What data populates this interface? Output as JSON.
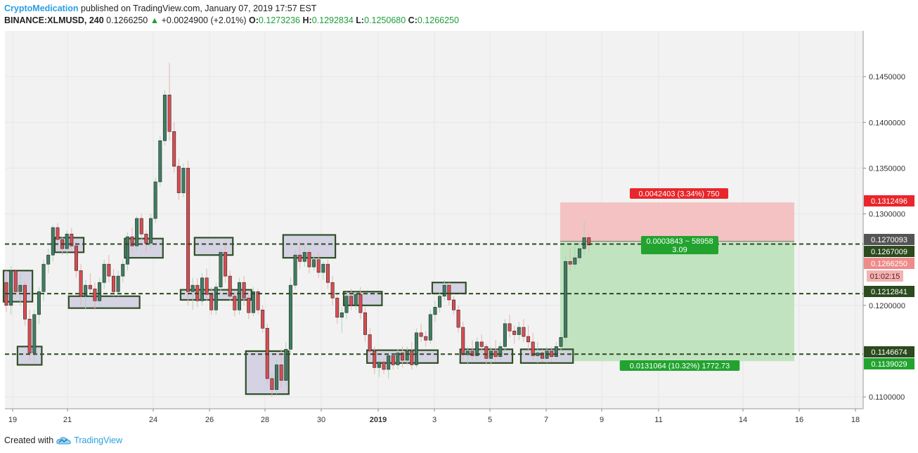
{
  "header": {
    "author": "CryptoMedication",
    "published": " published on TradingView.com, January 07, 2019 17:57 EST",
    "symbol": "BINANCE:XLMUSD, 240",
    "last": "0.1266250",
    "change_arrow": "▲",
    "change": "+0.0024900 (+2.01%)",
    "o_label": "O:",
    "o": "0.1273236",
    "h_label": "H:",
    "h": "0.1292834",
    "l_label": "L:",
    "l": "0.1250680",
    "c_label": "C:",
    "c": "0.1266250"
  },
  "footer": {
    "created_with": "Created with",
    "brand": "TradingView"
  },
  "colors": {
    "up": "#3f7d61",
    "down": "#d94c50",
    "background": "#f2f2f2",
    "box_fill": "#cfcce0",
    "box_stroke": "#2f4f26",
    "level": "#2b4a1e",
    "stop_zone": "#f4c2c2",
    "target_zone": "#c2e3c0"
  },
  "chart_data": {
    "type": "candlestick",
    "x_ticks": [
      "19",
      "21",
      "24",
      "26",
      "28",
      "30",
      "2019",
      "3",
      "5",
      "7",
      "9",
      "11",
      "14",
      "16",
      "18"
    ],
    "y_ticks": [
      "0.1100000",
      "0.1200000",
      "0.1300000",
      "0.1350000",
      "0.1400000",
      "0.1450000"
    ],
    "ylim": [
      0.1087,
      0.15
    ],
    "horizontal_levels": [
      0.1267009,
      0.1212841,
      0.1146674
    ],
    "price_labels": [
      {
        "text": "0.1312496",
        "value": 0.1312496,
        "kind": "stop"
      },
      {
        "text": "0.1270093",
        "value": 0.1270093,
        "kind": "entry"
      },
      {
        "text": "0.1267009",
        "value": 0.1267009,
        "kind": "level"
      },
      {
        "text": "0.1266250",
        "value": 0.126625,
        "kind": "last"
      },
      {
        "text": "01:02:15",
        "value": 0.1252,
        "kind": "timer"
      },
      {
        "text": "0.1212841",
        "value": 0.1212841,
        "kind": "level"
      },
      {
        "text": "0.1146674",
        "value": 0.1146674,
        "kind": "level"
      },
      {
        "text": "0.1139029",
        "value": 0.1139029,
        "kind": "target"
      }
    ],
    "position": {
      "entry": 0.1270093,
      "stop": 0.1312496,
      "target": 0.1139029,
      "stop_label": "0.0042403 (3.34%) 750",
      "ratio_label_1": "0.0003843 ~ 58958",
      "ratio_label_2": "3.09",
      "target_label": "0.0131064 (10.32%) 1772.73"
    },
    "zones": [
      {
        "i0": 0,
        "i1": 5,
        "lo": 0.1204,
        "hi": 0.1238
      },
      {
        "i0": 3,
        "i1": 7,
        "lo": 0.1135,
        "hi": 0.1155
      },
      {
        "i0": 11,
        "i1": 16,
        "lo": 0.1258,
        "hi": 0.1274
      },
      {
        "i0": 14,
        "i1": 28,
        "lo": 0.1197,
        "hi": 0.121
      },
      {
        "i0": 26,
        "i1": 33,
        "lo": 0.1252,
        "hi": 0.1273
      },
      {
        "i0": 38,
        "i1": 52,
        "lo": 0.1206,
        "hi": 0.1217
      },
      {
        "i0": 41,
        "i1": 48,
        "lo": 0.1255,
        "hi": 0.1274
      },
      {
        "i0": 52,
        "i1": 60,
        "lo": 0.1103,
        "hi": 0.115
      },
      {
        "i0": 60,
        "i1": 70,
        "lo": 0.1252,
        "hi": 0.1277
      },
      {
        "i0": 73,
        "i1": 80,
        "lo": 0.12,
        "hi": 0.1215
      },
      {
        "i0": 78,
        "i1": 92,
        "lo": 0.1137,
        "hi": 0.1151
      },
      {
        "i0": 92,
        "i1": 98,
        "lo": 0.1213,
        "hi": 0.1225
      },
      {
        "i0": 98,
        "i1": 108,
        "lo": 0.1137,
        "hi": 0.1152
      },
      {
        "i0": 111,
        "i1": 121,
        "lo": 0.1137,
        "hi": 0.1152
      }
    ],
    "candles_from": "2018-12-18 20:00",
    "candle_interval": "4h",
    "ohlc": [
      [
        0.1225,
        0.1238,
        0.1193,
        0.12
      ],
      [
        0.12,
        0.1243,
        0.119,
        0.1238
      ],
      [
        0.1238,
        0.124,
        0.121,
        0.1215
      ],
      [
        0.1215,
        0.1235,
        0.12,
        0.1222
      ],
      [
        0.1222,
        0.1226,
        0.1178,
        0.1185
      ],
      [
        0.1185,
        0.1195,
        0.114,
        0.1148
      ],
      [
        0.1148,
        0.1195,
        0.1138,
        0.119
      ],
      [
        0.119,
        0.122,
        0.118,
        0.1215
      ],
      [
        0.1215,
        0.125,
        0.1205,
        0.1245
      ],
      [
        0.1245,
        0.1262,
        0.1235,
        0.1255
      ],
      [
        0.1255,
        0.1288,
        0.1248,
        0.1285
      ],
      [
        0.1285,
        0.129,
        0.1265,
        0.1272
      ],
      [
        0.1272,
        0.1275,
        0.1255,
        0.1262
      ],
      [
        0.1262,
        0.1282,
        0.1255,
        0.1278
      ],
      [
        0.1278,
        0.1285,
        0.126,
        0.1265
      ],
      [
        0.1265,
        0.127,
        0.123,
        0.1238
      ],
      [
        0.1238,
        0.1245,
        0.12,
        0.121
      ],
      [
        0.121,
        0.1228,
        0.1195,
        0.1222
      ],
      [
        0.1222,
        0.1235,
        0.1212,
        0.1218
      ],
      [
        0.1218,
        0.1225,
        0.1195,
        0.1205
      ],
      [
        0.1205,
        0.123,
        0.12,
        0.1225
      ],
      [
        0.1225,
        0.125,
        0.1218,
        0.1245
      ],
      [
        0.1245,
        0.1255,
        0.1225,
        0.1232
      ],
      [
        0.1232,
        0.124,
        0.121,
        0.1215
      ],
      [
        0.1215,
        0.1238,
        0.121,
        0.1232
      ],
      [
        0.1232,
        0.125,
        0.1225,
        0.1245
      ],
      [
        0.1245,
        0.128,
        0.1238,
        0.1275
      ],
      [
        0.1275,
        0.1285,
        0.1258,
        0.1265
      ],
      [
        0.1265,
        0.1298,
        0.126,
        0.1295
      ],
      [
        0.1295,
        0.13,
        0.127,
        0.1278
      ],
      [
        0.1278,
        0.1282,
        0.1258,
        0.1268
      ],
      [
        0.1268,
        0.13,
        0.1262,
        0.1295
      ],
      [
        0.1295,
        0.134,
        0.129,
        0.1335
      ],
      [
        0.1335,
        0.1385,
        0.133,
        0.138
      ],
      [
        0.138,
        0.1435,
        0.1375,
        0.143
      ],
      [
        0.143,
        0.1465,
        0.138,
        0.139
      ],
      [
        0.139,
        0.14,
        0.1345,
        0.1352
      ],
      [
        0.1352,
        0.136,
        0.1315,
        0.1323
      ],
      [
        0.1323,
        0.1355,
        0.1318,
        0.135
      ],
      [
        0.135,
        0.1358,
        0.12,
        0.1215
      ],
      [
        0.1215,
        0.123,
        0.1195,
        0.1222
      ],
      [
        0.1222,
        0.123,
        0.1198,
        0.1205
      ],
      [
        0.1205,
        0.1235,
        0.12,
        0.123
      ],
      [
        0.123,
        0.124,
        0.1205,
        0.1212
      ],
      [
        0.1212,
        0.122,
        0.119,
        0.1195
      ],
      [
        0.1195,
        0.1225,
        0.119,
        0.122
      ],
      [
        0.122,
        0.1262,
        0.1215,
        0.1258
      ],
      [
        0.1258,
        0.127,
        0.1225,
        0.1232
      ],
      [
        0.1232,
        0.1238,
        0.1205,
        0.121
      ],
      [
        0.121,
        0.1215,
        0.1188,
        0.1195
      ],
      [
        0.1195,
        0.123,
        0.119,
        0.1225
      ],
      [
        0.1225,
        0.1232,
        0.12,
        0.1208
      ],
      [
        0.1208,
        0.1212,
        0.1185,
        0.1192
      ],
      [
        0.1192,
        0.122,
        0.1188,
        0.1215
      ],
      [
        0.1215,
        0.1218,
        0.119,
        0.1195
      ],
      [
        0.1195,
        0.12,
        0.117,
        0.1175
      ],
      [
        0.1175,
        0.118,
        0.1115,
        0.112
      ],
      [
        0.112,
        0.1125,
        0.11,
        0.1108
      ],
      [
        0.1108,
        0.114,
        0.1103,
        0.1135
      ],
      [
        0.1135,
        0.1152,
        0.111,
        0.1118
      ],
      [
        0.1118,
        0.116,
        0.1112,
        0.1152
      ],
      [
        0.1152,
        0.123,
        0.1148,
        0.1222
      ],
      [
        0.1222,
        0.126,
        0.1218,
        0.1255
      ],
      [
        0.1255,
        0.127,
        0.124,
        0.1248
      ],
      [
        0.1248,
        0.1265,
        0.1242,
        0.1258
      ],
      [
        0.1258,
        0.1262,
        0.1235,
        0.1242
      ],
      [
        0.1242,
        0.1255,
        0.1238,
        0.125
      ],
      [
        0.125,
        0.1258,
        0.123,
        0.1236
      ],
      [
        0.1236,
        0.1248,
        0.1228,
        0.1245
      ],
      [
        0.1245,
        0.125,
        0.1218,
        0.1225
      ],
      [
        0.1225,
        0.1232,
        0.12,
        0.1208
      ],
      [
        0.1208,
        0.1212,
        0.118,
        0.1187
      ],
      [
        0.1187,
        0.1198,
        0.117,
        0.1192
      ],
      [
        0.1192,
        0.1215,
        0.1185,
        0.121
      ],
      [
        0.121,
        0.1218,
        0.1195,
        0.12
      ],
      [
        0.12,
        0.1215,
        0.1195,
        0.1212
      ],
      [
        0.1212,
        0.122,
        0.1185,
        0.1192
      ],
      [
        0.1192,
        0.1198,
        0.116,
        0.1168
      ],
      [
        0.1168,
        0.1175,
        0.114,
        0.115
      ],
      [
        0.115,
        0.1155,
        0.1125,
        0.1132
      ],
      [
        0.1132,
        0.1145,
        0.1122,
        0.1138
      ],
      [
        0.1138,
        0.1142,
        0.1125,
        0.113
      ],
      [
        0.113,
        0.1148,
        0.112,
        0.1145
      ],
      [
        0.1145,
        0.115,
        0.113,
        0.1135
      ],
      [
        0.1135,
        0.1152,
        0.113,
        0.1148
      ],
      [
        0.1148,
        0.1155,
        0.1132,
        0.114
      ],
      [
        0.114,
        0.1155,
        0.1135,
        0.115
      ],
      [
        0.115,
        0.116,
        0.113,
        0.1135
      ],
      [
        0.1135,
        0.1175,
        0.1132,
        0.117
      ],
      [
        0.117,
        0.118,
        0.116,
        0.1166
      ],
      [
        0.1166,
        0.1172,
        0.1155,
        0.1162
      ],
      [
        0.1162,
        0.1195,
        0.1158,
        0.119
      ],
      [
        0.119,
        0.1205,
        0.1182,
        0.1198
      ],
      [
        0.1198,
        0.1215,
        0.1192,
        0.121
      ],
      [
        0.121,
        0.1228,
        0.1205,
        0.1222
      ],
      [
        0.1222,
        0.1225,
        0.12,
        0.1206
      ],
      [
        0.1206,
        0.121,
        0.119,
        0.1195
      ],
      [
        0.1195,
        0.12,
        0.117,
        0.1176
      ],
      [
        0.1176,
        0.1182,
        0.114,
        0.1146
      ],
      [
        0.1146,
        0.1155,
        0.1135,
        0.115
      ],
      [
        0.115,
        0.1162,
        0.114,
        0.1145
      ],
      [
        0.1145,
        0.1165,
        0.114,
        0.116
      ],
      [
        0.116,
        0.1168,
        0.1148,
        0.1155
      ],
      [
        0.1155,
        0.1158,
        0.1135,
        0.1142
      ],
      [
        0.1142,
        0.1155,
        0.1135,
        0.115
      ],
      [
        0.115,
        0.1162,
        0.1138,
        0.1144
      ],
      [
        0.1144,
        0.116,
        0.114,
        0.1155
      ],
      [
        0.1155,
        0.1185,
        0.115,
        0.118
      ],
      [
        0.118,
        0.119,
        0.1165,
        0.1172
      ],
      [
        0.1172,
        0.1178,
        0.1158,
        0.1168
      ],
      [
        0.1168,
        0.1182,
        0.1162,
        0.1176
      ],
      [
        0.1176,
        0.1185,
        0.116,
        0.1166
      ],
      [
        0.1166,
        0.1178,
        0.115,
        0.116
      ],
      [
        0.116,
        0.117,
        0.114,
        0.1145
      ],
      [
        0.1145,
        0.116,
        0.1137,
        0.1148
      ],
      [
        0.1148,
        0.1152,
        0.1138,
        0.1142
      ],
      [
        0.1142,
        0.1155,
        0.1137,
        0.115
      ],
      [
        0.115,
        0.1155,
        0.1138,
        0.1144
      ],
      [
        0.1144,
        0.116,
        0.114,
        0.1155
      ],
      [
        0.1155,
        0.1172,
        0.115,
        0.1165
      ],
      [
        0.1165,
        0.1255,
        0.116,
        0.1248
      ],
      [
        0.1248,
        0.1262,
        0.1238,
        0.1245
      ],
      [
        0.1245,
        0.1265,
        0.124,
        0.1252
      ],
      [
        0.1252,
        0.127,
        0.1246,
        0.1262
      ],
      [
        0.1262,
        0.1292,
        0.1255,
        0.1274
      ],
      [
        0.1274,
        0.1278,
        0.1258,
        0.1266
      ]
    ]
  }
}
